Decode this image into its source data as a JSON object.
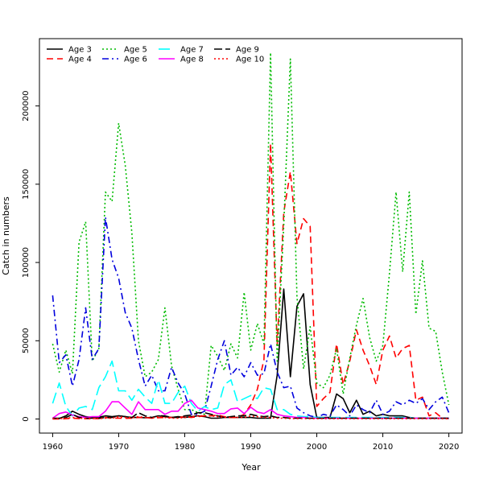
{
  "chart_data": {
    "type": "line",
    "title": "",
    "xlabel": "Year",
    "ylabel": "Catch in numbers",
    "xlim": [
      1958,
      2022
    ],
    "ylim": [
      -9000,
      243000
    ],
    "xticks": [
      1960,
      1970,
      1980,
      1990,
      2000,
      2010,
      2020
    ],
    "yticks": [
      0,
      50000,
      100000,
      150000,
      200000
    ],
    "legend_position": "top-left",
    "x": [
      1960,
      1961,
      1962,
      1963,
      1964,
      1965,
      1966,
      1967,
      1968,
      1969,
      1970,
      1971,
      1972,
      1973,
      1974,
      1975,
      1976,
      1977,
      1978,
      1979,
      1980,
      1981,
      1982,
      1983,
      1984,
      1985,
      1986,
      1987,
      1988,
      1989,
      1990,
      1991,
      1992,
      1993,
      1994,
      1995,
      1996,
      1997,
      1998,
      1999,
      2000,
      2001,
      2002,
      2003,
      2004,
      2005,
      2006,
      2007,
      2008,
      2009,
      2010,
      2011,
      2012,
      2013,
      2014,
      2015,
      2016,
      2017,
      2018,
      2019,
      2020
    ],
    "series": [
      {
        "name": "Age 3",
        "color": "#000000",
        "dash": "solid",
        "values": [
          300,
          300,
          2000,
          5000,
          3000,
          1500,
          1000,
          1200,
          2000,
          1500,
          2000,
          1500,
          1000,
          1000,
          800,
          1000,
          2000,
          1500,
          1000,
          1500,
          1000,
          1500,
          2000,
          1500,
          500,
          500,
          1000,
          1000,
          1000,
          1000,
          1000,
          500,
          500,
          500,
          28000,
          83000,
          27000,
          72000,
          80000,
          22000,
          1000,
          1000,
          1000,
          16000,
          13000,
          4000,
          12000,
          3000,
          5000,
          2000,
          3000,
          2000,
          2000,
          2000,
          1000,
          500,
          500,
          500,
          500,
          500,
          500
        ]
      },
      {
        "name": "Age 4",
        "color": "#ff0000",
        "dash": "8,5",
        "values": [
          0,
          0,
          200,
          500,
          300,
          200,
          200,
          300,
          1000,
          500,
          500,
          400,
          500,
          1000,
          1000,
          500,
          800,
          1000,
          1000,
          1000,
          1500,
          1000,
          1500,
          2000,
          2000,
          2500,
          1500,
          1000,
          1000,
          3000,
          9000,
          19000,
          38000,
          176000,
          47000,
          132000,
          158000,
          112000,
          128000,
          123000,
          8000,
          13000,
          17000,
          48000,
          22000,
          37000,
          57000,
          44000,
          34000,
          22000,
          44000,
          53000,
          39000,
          45000,
          47000,
          12000,
          14000,
          2000,
          4000,
          500,
          200
        ]
      },
      {
        "name": "Age 5",
        "color": "#00bb00",
        "dash": "2,3",
        "values": [
          48000,
          30000,
          44000,
          29000,
          113000,
          126000,
          37000,
          45000,
          145000,
          139000,
          189000,
          162000,
          119000,
          50000,
          27000,
          30000,
          38000,
          71000,
          34000,
          19000,
          6000,
          6000,
          4000,
          3000,
          47000,
          40000,
          31000,
          48000,
          39000,
          81000,
          44000,
          61000,
          48000,
          234000,
          37000,
          124000,
          230000,
          78000,
          32000,
          59000,
          23000,
          20000,
          28000,
          45000,
          16000,
          39000,
          60000,
          77000,
          52000,
          37000,
          47000,
          93000,
          145000,
          94000,
          145000,
          67000,
          101000,
          58000,
          56000,
          30000,
          9000
        ]
      },
      {
        "name": "Age 6",
        "color": "#0000dd",
        "dash": "8,4,2,4",
        "values": [
          79000,
          36000,
          41000,
          21000,
          38000,
          71000,
          38000,
          45000,
          129000,
          102000,
          90000,
          68000,
          58000,
          38000,
          21000,
          28000,
          18000,
          18000,
          33000,
          23000,
          16000,
          3000,
          3000,
          5000,
          21000,
          38000,
          50000,
          28000,
          33000,
          27000,
          36000,
          28000,
          29000,
          48000,
          30000,
          20000,
          21000,
          7000,
          4000,
          2000,
          1000,
          3000,
          2000,
          9000,
          6000,
          2000,
          9000,
          6000,
          4000,
          12000,
          3000,
          5000,
          11000,
          9000,
          12000,
          10000,
          13000,
          6000,
          11000,
          14000,
          4000
        ]
      },
      {
        "name": "Age 7",
        "color": "#00ffff",
        "dash": "14,6",
        "values": [
          10000,
          23000,
          8000,
          2000,
          7000,
          8000,
          6000,
          20000,
          27000,
          37000,
          18000,
          18000,
          12000,
          19000,
          14000,
          10000,
          25000,
          10000,
          10000,
          17000,
          21000,
          10000,
          5000,
          8000,
          6000,
          7000,
          22000,
          25000,
          11000,
          13000,
          15000,
          13000,
          20000,
          19000,
          6000,
          6000,
          3000,
          2000,
          1500,
          1500,
          1000,
          1000,
          1000,
          1000,
          1000,
          1000,
          1000,
          1000,
          1000,
          1000,
          1000,
          1000,
          1000,
          1000,
          1000,
          500,
          500,
          500,
          500,
          500,
          500
        ]
      },
      {
        "name": "Age 8",
        "color": "#ff00ff",
        "dash": "solid",
        "values": [
          500,
          3500,
          4500,
          2500,
          1500,
          1000,
          1500,
          1500,
          5000,
          11000,
          11000,
          7000,
          3000,
          11000,
          6000,
          6000,
          6000,
          3000,
          5000,
          5000,
          10000,
          12000,
          7000,
          6000,
          5000,
          3500,
          3500,
          6500,
          7000,
          3500,
          7500,
          4500,
          3500,
          6000,
          3000,
          2000,
          1500,
          1000,
          1000,
          500,
          500,
          500,
          500,
          500,
          500,
          500,
          500,
          500,
          500,
          500,
          500,
          500,
          500,
          500,
          500,
          500,
          500,
          500,
          500,
          500,
          500
        ]
      },
      {
        "name": "Age 9",
        "color": "#000000",
        "dash": "10,4",
        "values": [
          500,
          500,
          1000,
          3000,
          1000,
          500,
          500,
          500,
          1000,
          1000,
          2000,
          1500,
          1000,
          4000,
          2000,
          1000,
          2000,
          2000,
          1000,
          1000,
          2000,
          2500,
          4000,
          4000,
          3000,
          2000,
          1000,
          1500,
          2000,
          2000,
          3000,
          2000,
          1500,
          2000,
          1000,
          1000,
          500,
          500,
          500,
          500,
          500,
          500,
          500,
          500,
          500,
          500,
          500,
          500,
          500,
          500,
          500,
          500,
          500,
          500,
          500,
          500,
          500,
          500,
          500,
          500,
          500
        ]
      },
      {
        "name": "Age 10",
        "color": "#ff0000",
        "dash": "2,3",
        "values": [
          200,
          200,
          500,
          1000,
          500,
          300,
          300,
          300,
          500,
          500,
          1500,
          1000,
          800,
          1500,
          1000,
          500,
          1500,
          1000,
          500,
          500,
          1000,
          1500,
          2000,
          2000,
          2000,
          1500,
          1000,
          1000,
          1000,
          1000,
          2000,
          1500,
          1000,
          1000,
          500,
          500,
          300,
          300,
          300,
          200,
          200,
          200,
          200,
          200,
          200,
          200,
          200,
          200,
          200,
          200,
          200,
          200,
          200,
          200,
          200,
          200,
          200,
          200,
          200,
          200,
          200
        ]
      }
    ]
  }
}
